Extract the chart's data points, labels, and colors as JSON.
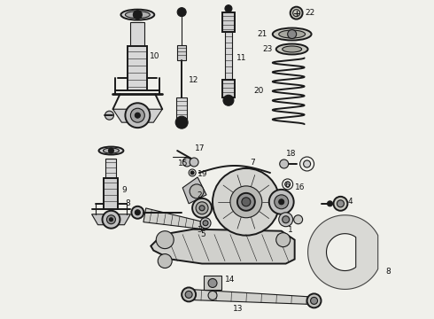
{
  "bg_color": "#f0f0eb",
  "line_color": "#1a1a1a",
  "fig_width": 4.9,
  "fig_height": 3.6,
  "dpi": 100,
  "font_size": 6.5,
  "text_color": "#111111"
}
